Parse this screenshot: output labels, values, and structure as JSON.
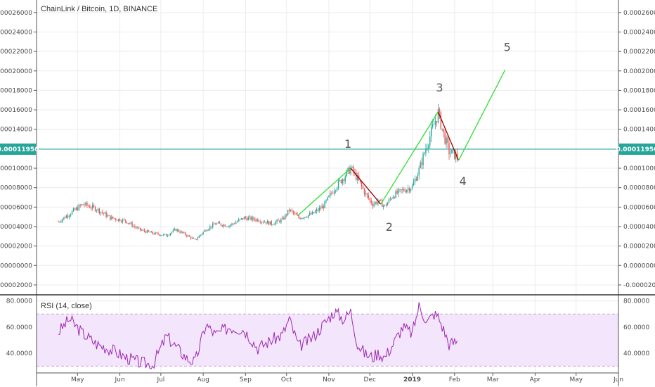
{
  "colors": {
    "up": "#26a69a",
    "down": "#ef5350",
    "wave_up": "#33dd33",
    "wave_down": "#990000",
    "price_line": "#26a69a",
    "rsi_line": "#9c27b0",
    "rsi_band": "#f3e5fb",
    "grid": "#ececec",
    "axis_border": "#555555"
  },
  "chart_data": [
    {
      "type": "candlestick",
      "title": "ChainLink / Bitcoin, 1D, BINANCE",
      "x_ticks": [
        "May",
        "Jun",
        "Jul",
        "Aug",
        "Sep",
        "Oct",
        "Nov",
        "Dec",
        "2019",
        "Feb",
        "Mar",
        "Apr",
        "May",
        "Jun"
      ],
      "y_ticks": [
        "0.00026000",
        "0.00024000",
        "0.00022000",
        "0.00020000",
        "0.00018000",
        "0.00016000",
        "0.00014000",
        "0.00012000",
        "0.00010000",
        "0.00008000",
        "0.00006000",
        "0.00004000",
        "0.00002000",
        "0.00000000",
        "-0.00002000"
      ],
      "ylim": [
        -2.8e-05,
        0.00027
      ],
      "grid": true,
      "last_price": "0.00011956",
      "last_price_value": 0.00011956,
      "close_series": [
        {
          "date": "2018-04-17",
          "close": 4.5e-05
        },
        {
          "date": "2018-04-25",
          "close": 5.3e-05
        },
        {
          "date": "2018-05-05",
          "close": 6.3e-05
        },
        {
          "date": "2018-05-15",
          "close": 5.8e-05
        },
        {
          "date": "2018-05-25",
          "close": 4.9e-05
        },
        {
          "date": "2018-06-05",
          "close": 4.6e-05
        },
        {
          "date": "2018-06-15",
          "close": 3.7e-05
        },
        {
          "date": "2018-06-25",
          "close": 3.3e-05
        },
        {
          "date": "2018-07-05",
          "close": 3.1e-05
        },
        {
          "date": "2018-07-12",
          "close": 3.7e-05
        },
        {
          "date": "2018-07-20",
          "close": 3.1e-05
        },
        {
          "date": "2018-07-26",
          "close": 2.6e-05
        },
        {
          "date": "2018-08-03",
          "close": 3.7e-05
        },
        {
          "date": "2018-08-10",
          "close": 4.3e-05
        },
        {
          "date": "2018-08-20",
          "close": 4.1e-05
        },
        {
          "date": "2018-08-31",
          "close": 4.9e-05
        },
        {
          "date": "2018-09-10",
          "close": 4.7e-05
        },
        {
          "date": "2018-09-20",
          "close": 4.3e-05
        },
        {
          "date": "2018-09-28",
          "close": 4.7e-05
        },
        {
          "date": "2018-10-03",
          "close": 5.7e-05
        },
        {
          "date": "2018-10-10",
          "close": 4.9e-05
        },
        {
          "date": "2018-10-20",
          "close": 5.3e-05
        },
        {
          "date": "2018-10-28",
          "close": 6.1e-05
        },
        {
          "date": "2018-11-05",
          "close": 7.9e-05
        },
        {
          "date": "2018-11-12",
          "close": 9.1e-05
        },
        {
          "date": "2018-11-17",
          "close": 0.0001
        },
        {
          "date": "2018-11-22",
          "close": 8.9e-05
        },
        {
          "date": "2018-11-28",
          "close": 7.3e-05
        },
        {
          "date": "2018-12-03",
          "close": 6.3e-05
        },
        {
          "date": "2018-12-07",
          "close": 6.6e-05
        },
        {
          "date": "2018-12-12",
          "close": 6.1e-05
        },
        {
          "date": "2018-12-18",
          "close": 7.2e-05
        },
        {
          "date": "2018-12-25",
          "close": 7.7e-05
        },
        {
          "date": "2019-01-01",
          "close": 8.1e-05
        },
        {
          "date": "2019-01-06",
          "close": 9.8e-05
        },
        {
          "date": "2019-01-12",
          "close": 0.000125
        },
        {
          "date": "2019-01-17",
          "close": 0.000145
        },
        {
          "date": "2019-01-20",
          "close": 0.000157
        },
        {
          "date": "2019-01-24",
          "close": 0.000135
        },
        {
          "date": "2019-01-28",
          "close": 0.000117
        },
        {
          "date": "2019-02-03",
          "close": 0.000112
        }
      ],
      "wave_points": [
        {
          "label": "1",
          "date": "2018-11-17",
          "value": 0.0001
        },
        {
          "label": "2",
          "date": "2018-12-09",
          "value": 6.3e-05
        },
        {
          "label": "3",
          "date": "2019-01-20",
          "value": 0.000158
        },
        {
          "label": "4",
          "date": "2019-02-04",
          "value": 0.000108
        },
        {
          "label": "5",
          "date": "2019-03-10",
          "value": 0.000201
        }
      ],
      "wave_start": {
        "date": "2018-10-09",
        "value": 5.1e-05
      },
      "wave_labels": [
        "1",
        "2",
        "3",
        "4",
        "5"
      ]
    },
    {
      "type": "line",
      "title": "RSI (14, close)",
      "series": [
        {
          "name": "RSI (14, close)",
          "points": [
            {
              "date": "2018-04-17",
              "value": 56
            },
            {
              "date": "2018-04-25",
              "value": 66
            },
            {
              "date": "2018-05-05",
              "value": 55
            },
            {
              "date": "2018-05-15",
              "value": 47
            },
            {
              "date": "2018-05-25",
              "value": 43
            },
            {
              "date": "2018-06-05",
              "value": 37
            },
            {
              "date": "2018-06-15",
              "value": 33
            },
            {
              "date": "2018-06-25",
              "value": 31
            },
            {
              "date": "2018-07-05",
              "value": 53
            },
            {
              "date": "2018-07-12",
              "value": 45
            },
            {
              "date": "2018-07-20",
              "value": 36
            },
            {
              "date": "2018-07-26",
              "value": 33
            },
            {
              "date": "2018-08-03",
              "value": 62
            },
            {
              "date": "2018-08-10",
              "value": 54
            },
            {
              "date": "2018-08-20",
              "value": 60
            },
            {
              "date": "2018-08-31",
              "value": 58
            },
            {
              "date": "2018-09-10",
              "value": 44
            },
            {
              "date": "2018-09-20",
              "value": 50
            },
            {
              "date": "2018-09-28",
              "value": 54
            },
            {
              "date": "2018-10-03",
              "value": 66
            },
            {
              "date": "2018-10-10",
              "value": 45
            },
            {
              "date": "2018-10-20",
              "value": 52
            },
            {
              "date": "2018-10-28",
              "value": 62
            },
            {
              "date": "2018-11-05",
              "value": 72
            },
            {
              "date": "2018-11-12",
              "value": 66
            },
            {
              "date": "2018-11-17",
              "value": 72
            },
            {
              "date": "2018-11-22",
              "value": 47
            },
            {
              "date": "2018-11-28",
              "value": 39
            },
            {
              "date": "2018-12-03",
              "value": 37
            },
            {
              "date": "2018-12-07",
              "value": 40
            },
            {
              "date": "2018-12-12",
              "value": 37
            },
            {
              "date": "2018-12-18",
              "value": 47
            },
            {
              "date": "2018-12-25",
              "value": 60
            },
            {
              "date": "2019-01-01",
              "value": 55
            },
            {
              "date": "2019-01-06",
              "value": 76
            },
            {
              "date": "2019-01-12",
              "value": 64
            },
            {
              "date": "2019-01-17",
              "value": 70
            },
            {
              "date": "2019-01-20",
              "value": 68
            },
            {
              "date": "2019-01-24",
              "value": 58
            },
            {
              "date": "2019-01-28",
              "value": 47
            },
            {
              "date": "2019-02-03",
              "value": 49
            }
          ]
        }
      ],
      "y_ticks": [
        "80.0000",
        "60.0000",
        "40.0000"
      ],
      "ylim": [
        27,
        82
      ],
      "band": [
        30,
        70
      ],
      "grid": true
    }
  ]
}
